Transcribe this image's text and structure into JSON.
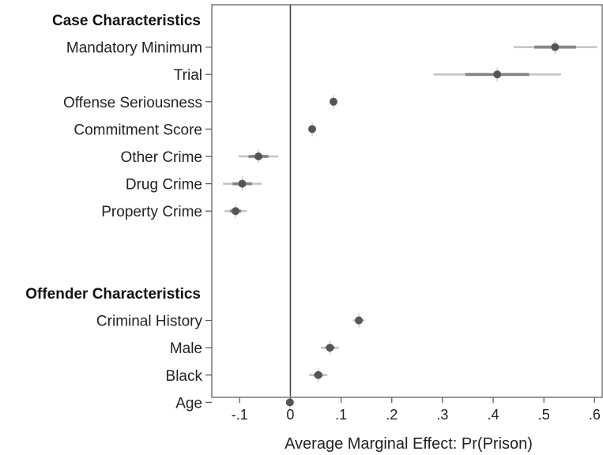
{
  "chart_data": {
    "type": "scatter",
    "xlabel": "Average Marginal Effect: Pr(Prison)",
    "xlim": [
      -0.155,
      0.615
    ],
    "x_ticks": [
      {
        "value": -0.1,
        "label": "-.1"
      },
      {
        "value": 0,
        "label": "0"
      },
      {
        "value": 0.1,
        "label": ".1"
      },
      {
        "value": 0.2,
        "label": ".2"
      },
      {
        "value": 0.3,
        "label": ".3"
      },
      {
        "value": 0.4,
        "label": ".4"
      },
      {
        "value": 0.5,
        "label": ".5"
      },
      {
        "value": 0.6,
        "label": ".6"
      }
    ],
    "reference_line_x": 0,
    "groups": [
      {
        "header": "Case Characteristics",
        "items": [
          {
            "label": "Mandatory Minimum",
            "estimate": 0.522,
            "ci": [
              0.44,
              0.605
            ]
          },
          {
            "label": "Trial",
            "estimate": 0.408,
            "ci": [
              0.282,
              0.534
            ]
          },
          {
            "label": "Offense Seriousness",
            "estimate": 0.085,
            "ci": [
              0.079,
              0.091
            ]
          },
          {
            "label": "Commitment Score",
            "estimate": 0.043,
            "ci": [
              0.036,
              0.05
            ]
          },
          {
            "label": "Other Crime",
            "estimate": -0.063,
            "ci": [
              -0.102,
              -0.024
            ]
          },
          {
            "label": "Drug Crime",
            "estimate": -0.095,
            "ci": [
              -0.133,
              -0.057
            ]
          },
          {
            "label": "Property Crime",
            "estimate": -0.108,
            "ci": [
              -0.13,
              -0.086
            ]
          }
        ]
      },
      {
        "header": "Offender Characteristics",
        "items": [
          {
            "label": "Criminal History",
            "estimate": 0.135,
            "ci": [
              0.123,
              0.147
            ]
          },
          {
            "label": "Male",
            "estimate": 0.078,
            "ci": [
              0.06,
              0.096
            ]
          },
          {
            "label": "Black",
            "estimate": 0.055,
            "ci": [
              0.037,
              0.073
            ]
          },
          {
            "label": "Age",
            "estimate": -0.001,
            "ci": [
              -0.004,
              0.002
            ]
          }
        ]
      }
    ],
    "marker_color": "#555555",
    "ci_color": "#9a9a9a",
    "ref_line_color": "#444444"
  }
}
